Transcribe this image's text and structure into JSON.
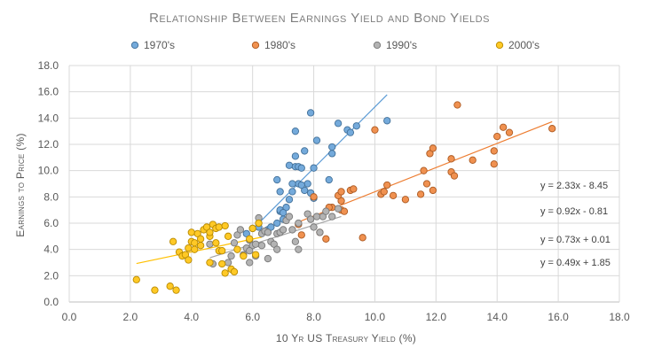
{
  "chart_data": {
    "type": "scatter",
    "title": "Relationship Between Earnings Yield and Bond Yields",
    "xlabel": "10 Yr US Treasury Yield (%)",
    "ylabel": "Earnings to Price (%)",
    "xlim": [
      0,
      18
    ],
    "ylim": [
      0,
      18
    ],
    "x_ticks": [
      "0.0",
      "2.0",
      "4.0",
      "6.0",
      "8.0",
      "10.0",
      "12.0",
      "14.0",
      "16.0",
      "18.0"
    ],
    "y_ticks": [
      "0.0",
      "2.0",
      "4.0",
      "6.0",
      "8.0",
      "10.0",
      "12.0",
      "14.0",
      "16.0",
      "18.0"
    ],
    "grid": true,
    "legend_position": "top",
    "series": [
      {
        "name": "1970's",
        "color": "#5b9bd5",
        "trendline": {
          "slope": 2.33,
          "intercept": -8.45,
          "x_range": [
            6.0,
            10.4
          ],
          "label": "y = 2.33x - 8.45"
        },
        "points": [
          [
            6.0,
            5.6
          ],
          [
            6.2,
            5.7
          ],
          [
            6.5,
            5.5
          ],
          [
            6.6,
            5.7
          ],
          [
            6.8,
            6.0
          ],
          [
            6.9,
            6.9
          ],
          [
            6.9,
            7.0
          ],
          [
            7.0,
            6.3
          ],
          [
            7.1,
            7.2
          ],
          [
            7.2,
            7.8
          ],
          [
            7.3,
            8.4
          ],
          [
            7.5,
            9.0
          ],
          [
            7.7,
            8.5
          ],
          [
            7.8,
            9.0
          ],
          [
            7.9,
            8.3
          ],
          [
            8.0,
            7.9
          ],
          [
            6.8,
            9.3
          ],
          [
            6.9,
            8.4
          ],
          [
            7.0,
            6.8
          ],
          [
            7.2,
            10.4
          ],
          [
            7.4,
            10.3
          ],
          [
            7.5,
            10.3
          ],
          [
            7.6,
            10.2
          ],
          [
            7.4,
            11.1
          ],
          [
            7.7,
            11.5
          ],
          [
            8.0,
            10.2
          ],
          [
            8.1,
            12.3
          ],
          [
            7.4,
            13.0
          ],
          [
            7.9,
            14.4
          ],
          [
            8.5,
            9.3
          ],
          [
            8.6,
            11.3
          ],
          [
            8.6,
            11.8
          ],
          [
            8.8,
            13.6
          ],
          [
            9.1,
            13.1
          ],
          [
            9.2,
            12.9
          ],
          [
            9.4,
            13.4
          ],
          [
            10.4,
            13.8
          ],
          [
            5.8,
            5.2
          ],
          [
            7.3,
            9.0
          ],
          [
            7.6,
            8.9
          ]
        ]
      },
      {
        "name": "1980's",
        "color": "#ed7d31",
        "trendline": {
          "slope": 0.92,
          "intercept": -0.81,
          "x_range": [
            7.5,
            15.8
          ],
          "label": "y = 0.92x - 0.81"
        },
        "points": [
          [
            7.5,
            5.9
          ],
          [
            7.6,
            5.1
          ],
          [
            8.2,
            5.3
          ],
          [
            8.4,
            4.8
          ],
          [
            8.6,
            7.2
          ],
          [
            8.9,
            7.0
          ],
          [
            8.9,
            7.7
          ],
          [
            9.0,
            6.9
          ],
          [
            8.8,
            8.1
          ],
          [
            8.9,
            8.4
          ],
          [
            9.2,
            8.5
          ],
          [
            9.3,
            8.6
          ],
          [
            8.5,
            7.2
          ],
          [
            9.6,
            4.9
          ],
          [
            10.0,
            13.1
          ],
          [
            10.2,
            8.2
          ],
          [
            10.4,
            8.9
          ],
          [
            10.3,
            8.4
          ],
          [
            10.6,
            8.1
          ],
          [
            11.0,
            7.8
          ],
          [
            11.5,
            8.2
          ],
          [
            11.6,
            10.0
          ],
          [
            11.7,
            9.0
          ],
          [
            11.9,
            8.5
          ],
          [
            11.8,
            11.3
          ],
          [
            11.9,
            11.7
          ],
          [
            12.5,
            10.9
          ],
          [
            12.5,
            9.9
          ],
          [
            12.6,
            9.6
          ],
          [
            12.7,
            15.0
          ],
          [
            13.2,
            10.8
          ],
          [
            13.9,
            11.5
          ],
          [
            13.9,
            10.5
          ],
          [
            14.0,
            12.6
          ],
          [
            14.2,
            13.3
          ],
          [
            14.4,
            12.9
          ],
          [
            15.8,
            13.2
          ],
          [
            8.0,
            8.0
          ]
        ]
      },
      {
        "name": "1990's",
        "color": "#a5a5a5",
        "trendline": {
          "slope": 0.73,
          "intercept": 0.01,
          "x_range": [
            4.6,
            8.9
          ],
          "label": "y = 0.73x + 0.01"
        },
        "points": [
          [
            4.6,
            4.4
          ],
          [
            4.7,
            2.9
          ],
          [
            5.2,
            3.0
          ],
          [
            5.3,
            3.5
          ],
          [
            5.4,
            4.5
          ],
          [
            5.5,
            5.1
          ],
          [
            5.6,
            5.5
          ],
          [
            5.7,
            3.6
          ],
          [
            5.8,
            4.1
          ],
          [
            5.9,
            4.7
          ],
          [
            5.9,
            3.0
          ],
          [
            6.0,
            4.3
          ],
          [
            6.1,
            4.4
          ],
          [
            6.2,
            6.0
          ],
          [
            6.2,
            6.4
          ],
          [
            6.3,
            4.3
          ],
          [
            6.3,
            5.2
          ],
          [
            6.4,
            5.4
          ],
          [
            6.5,
            5.3
          ],
          [
            6.5,
            3.3
          ],
          [
            6.6,
            4.6
          ],
          [
            6.7,
            4.4
          ],
          [
            6.8,
            4.0
          ],
          [
            6.8,
            5.2
          ],
          [
            6.9,
            5.3
          ],
          [
            7.0,
            5.5
          ],
          [
            7.1,
            6.2
          ],
          [
            7.2,
            6.5
          ],
          [
            7.3,
            5.5
          ],
          [
            7.4,
            4.6
          ],
          [
            7.5,
            4.0
          ],
          [
            7.5,
            6.0
          ],
          [
            7.8,
            6.7
          ],
          [
            7.9,
            6.3
          ],
          [
            8.0,
            5.7
          ],
          [
            8.1,
            6.5
          ],
          [
            8.2,
            5.3
          ],
          [
            8.3,
            6.5
          ],
          [
            8.4,
            6.9
          ],
          [
            8.6,
            6.5
          ],
          [
            8.8,
            7.1
          ],
          [
            6.1,
            3.5
          ],
          [
            5.9,
            3.9
          ]
        ]
      },
      {
        "name": "2000's",
        "color": "#ffc000",
        "trendline": {
          "slope": 0.49,
          "intercept": 1.85,
          "x_range": [
            2.2,
            6.3
          ],
          "label": "y = 0.49x + 1.85"
        },
        "points": [
          [
            2.2,
            1.7
          ],
          [
            2.8,
            0.9
          ],
          [
            3.3,
            1.2
          ],
          [
            3.5,
            0.9
          ],
          [
            3.4,
            4.6
          ],
          [
            3.6,
            3.8
          ],
          [
            3.7,
            3.5
          ],
          [
            3.8,
            3.6
          ],
          [
            3.9,
            3.2
          ],
          [
            3.9,
            4.1
          ],
          [
            4.0,
            4.6
          ],
          [
            4.0,
            5.3
          ],
          [
            4.1,
            4.0
          ],
          [
            4.1,
            4.5
          ],
          [
            4.2,
            5.2
          ],
          [
            4.3,
            4.8
          ],
          [
            4.3,
            4.3
          ],
          [
            4.4,
            5.5
          ],
          [
            4.5,
            5.7
          ],
          [
            4.6,
            5.0
          ],
          [
            4.6,
            5.3
          ],
          [
            4.7,
            5.9
          ],
          [
            4.8,
            5.6
          ],
          [
            4.9,
            5.7
          ],
          [
            4.9,
            3.9
          ],
          [
            5.0,
            3.9
          ],
          [
            5.0,
            2.9
          ],
          [
            5.1,
            5.8
          ],
          [
            5.1,
            2.2
          ],
          [
            5.3,
            2.5
          ],
          [
            5.4,
            2.3
          ],
          [
            5.5,
            4.0
          ],
          [
            5.7,
            3.5
          ],
          [
            5.9,
            4.8
          ],
          [
            6.0,
            5.6
          ],
          [
            6.1,
            3.6
          ],
          [
            6.2,
            6.0
          ],
          [
            4.6,
            3.0
          ],
          [
            4.8,
            4.5
          ],
          [
            5.2,
            5.0
          ]
        ]
      }
    ]
  }
}
